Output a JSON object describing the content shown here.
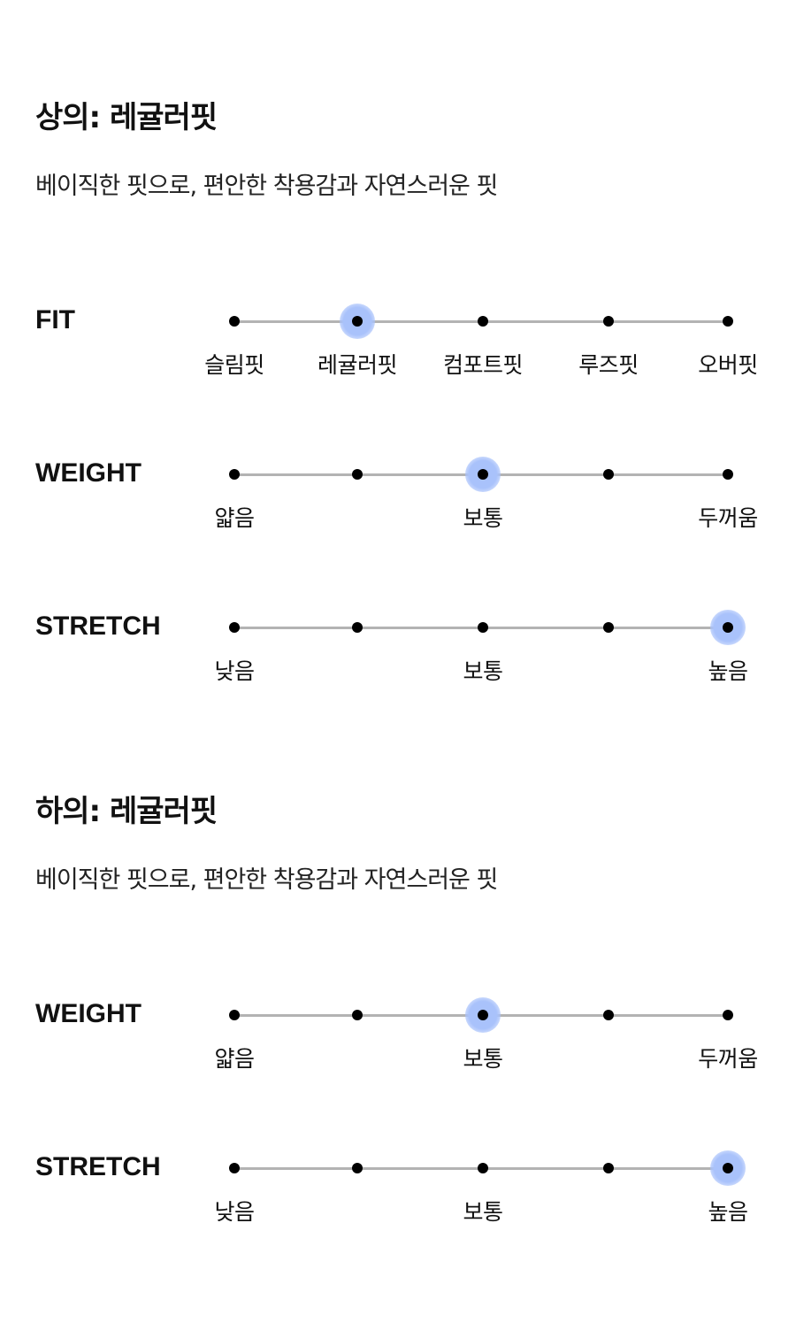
{
  "accent_color": "#a9c2fb",
  "sections": [
    {
      "title": "상의: 레귤러핏",
      "description": "베이직한 핏으로, 편안한 착용감과 자연스러운 핏",
      "scales": [
        {
          "label": "FIT",
          "options": [
            "슬림핏",
            "레귤러핏",
            "컴포트핏",
            "루즈핏",
            "오버핏"
          ],
          "selected_index": 1
        },
        {
          "label": "WEIGHT",
          "options": [
            "얇음",
            "",
            "보통",
            "",
            "두꺼움"
          ],
          "selected_index": 2
        },
        {
          "label": "STRETCH",
          "options": [
            "낮음",
            "",
            "보통",
            "",
            "높음"
          ],
          "selected_index": 4
        }
      ]
    },
    {
      "title": "하의: 레귤러핏",
      "description": "베이직한 핏으로, 편안한 착용감과 자연스러운 핏",
      "scales": [
        {
          "label": "WEIGHT",
          "options": [
            "얇음",
            "",
            "보통",
            "",
            "두꺼움"
          ],
          "selected_index": 2
        },
        {
          "label": "STRETCH",
          "options": [
            "낮음",
            "",
            "보통",
            "",
            "높음"
          ],
          "selected_index": 4
        }
      ]
    }
  ]
}
